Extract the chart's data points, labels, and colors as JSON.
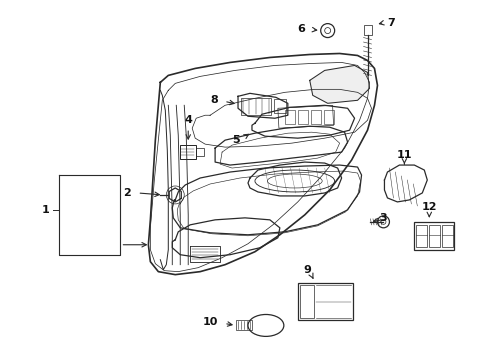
{
  "bg_color": "#ffffff",
  "line_color": "#2a2a2a",
  "label_color": "#111111",
  "figsize": [
    4.89,
    3.6
  ],
  "dpi": 100,
  "lw": 0.9,
  "fs": 8.0
}
